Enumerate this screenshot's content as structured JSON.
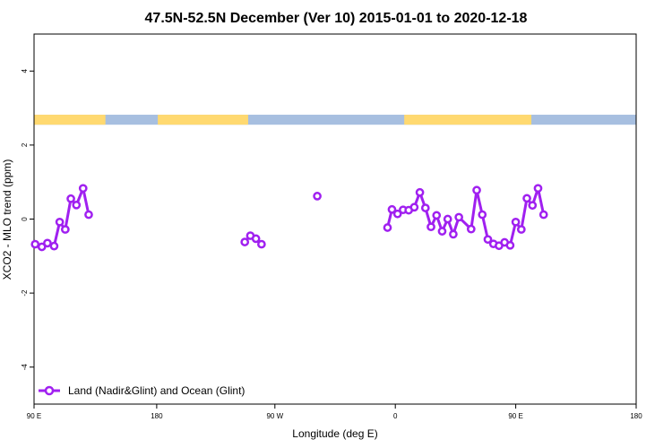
{
  "chart_data": {
    "type": "line",
    "title": "47.5N-52.5N December (Ver 10)   2015-01-01 to 2020-12-18",
    "xlabel": "Longitude (deg E)",
    "ylabel": "XCO2 - MLO trend (ppm)",
    "xlim": [
      -90,
      180
    ],
    "ylim": [
      -5,
      5
    ],
    "x_ticks": [
      {
        "value": -90,
        "label": "90 E"
      },
      {
        "value": -35,
        "label": "180"
      },
      {
        "value": 18,
        "label": "90 W"
      },
      {
        "value": 72,
        "label": "0"
      },
      {
        "value": 126,
        "label": "90 E"
      },
      {
        "value": 180,
        "label": "180"
      }
    ],
    "y_ticks": [
      {
        "value": -4,
        "label": "-4"
      },
      {
        "value": -2,
        "label": "-2"
      },
      {
        "value": 0,
        "label": "0"
      },
      {
        "value": 2,
        "label": "2"
      },
      {
        "value": 4,
        "label": "4"
      }
    ],
    "series": [
      {
        "name": "Land (Nadir&Glint) and Ocean (Glint)",
        "color": "#a020f0",
        "segments": [
          [
            [
              -89.5,
              -0.68
            ],
            [
              -86.5,
              -0.75
            ],
            [
              -84,
              -0.65
            ],
            [
              -81,
              -0.73
            ],
            [
              -78.5,
              -0.08
            ],
            [
              -76,
              -0.28
            ],
            [
              -73.5,
              0.55
            ],
            [
              -71,
              0.38
            ],
            [
              -68,
              0.83
            ],
            [
              -65.5,
              0.12
            ]
          ],
          [
            [
              4.5,
              -0.62
            ],
            [
              7,
              -0.45
            ],
            [
              9.5,
              -0.53
            ],
            [
              12,
              -0.68
            ]
          ],
          [
            [
              37,
              0.62
            ]
          ],
          [
            [
              68.5,
              -0.23
            ],
            [
              70.5,
              0.26
            ],
            [
              73,
              0.14
            ],
            [
              75.5,
              0.25
            ],
            [
              78,
              0.24
            ],
            [
              80.5,
              0.32
            ],
            [
              83,
              0.72
            ],
            [
              85.5,
              0.3
            ],
            [
              88,
              -0.21
            ],
            [
              90.5,
              0.1
            ],
            [
              93,
              -0.33
            ],
            [
              95.5,
              0.0
            ],
            [
              98,
              -0.41
            ],
            [
              100.5,
              0.05
            ],
            [
              106,
              -0.27
            ],
            [
              108.5,
              0.78
            ],
            [
              111,
              0.12
            ],
            [
              113.5,
              -0.55
            ],
            [
              116,
              -0.67
            ],
            [
              118.5,
              -0.72
            ],
            [
              121,
              -0.63
            ],
            [
              123.5,
              -0.71
            ],
            [
              126,
              -0.08
            ],
            [
              128.5,
              -0.28
            ],
            [
              131,
              0.56
            ],
            [
              133.5,
              0.37
            ],
            [
              136,
              0.83
            ],
            [
              138.5,
              0.12
            ]
          ]
        ]
      }
    ],
    "land_ocean_band": {
      "y_range": [
        2.55,
        2.82
      ],
      "land_color": "#ffd970",
      "ocean_color": "#a7bfe0",
      "land_segments": [
        [
          -90,
          -58
        ],
        [
          -34.5,
          6
        ],
        [
          76,
          133
        ]
      ]
    },
    "grid": false,
    "legend_position": "bottom-left"
  }
}
